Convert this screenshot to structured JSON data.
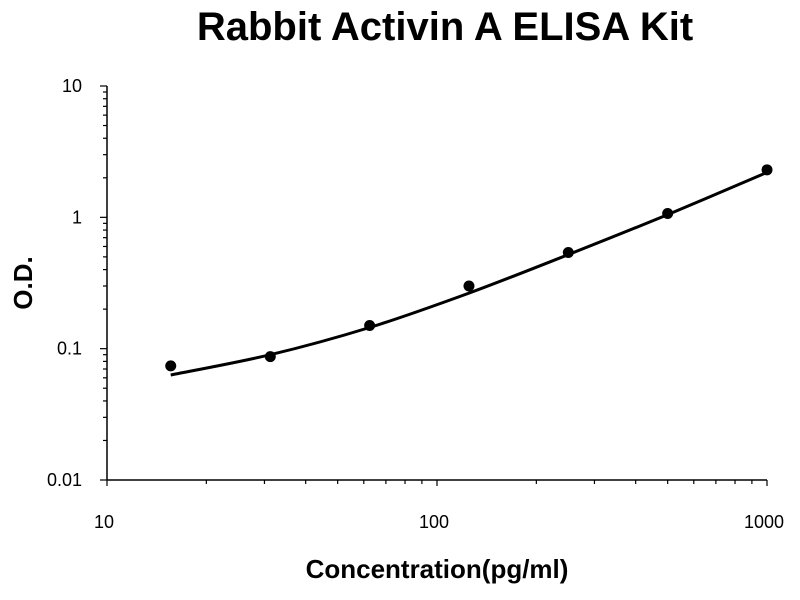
{
  "chart_data": {
    "type": "scatter",
    "title": "Rabbit Activin A ELISA Kit",
    "xlabel": "Concentration(pg/ml)",
    "ylabel": "O.D.",
    "xscale": "log",
    "yscale": "log",
    "xlim": [
      10,
      1000
    ],
    "ylim": [
      0.01,
      10
    ],
    "x_ticks": [
      "10",
      "100",
      "1000"
    ],
    "y_ticks": [
      "10",
      "1",
      "0.1",
      "0.01"
    ],
    "grid": false,
    "legend": "none",
    "series": [
      {
        "x": [
          15.6,
          31.25,
          62.5,
          125,
          250,
          500,
          1000
        ],
        "y": [
          0.074,
          0.087,
          0.15,
          0.3,
          0.54,
          1.07,
          2.3
        ]
      }
    ],
    "fit_curve": {
      "type": "line",
      "x": [
        15.6,
        31.25,
        62.5,
        125,
        250,
        500,
        1000
      ],
      "y": [
        0.063,
        0.09,
        0.145,
        0.265,
        0.52,
        1.05,
        2.2
      ]
    }
  }
}
